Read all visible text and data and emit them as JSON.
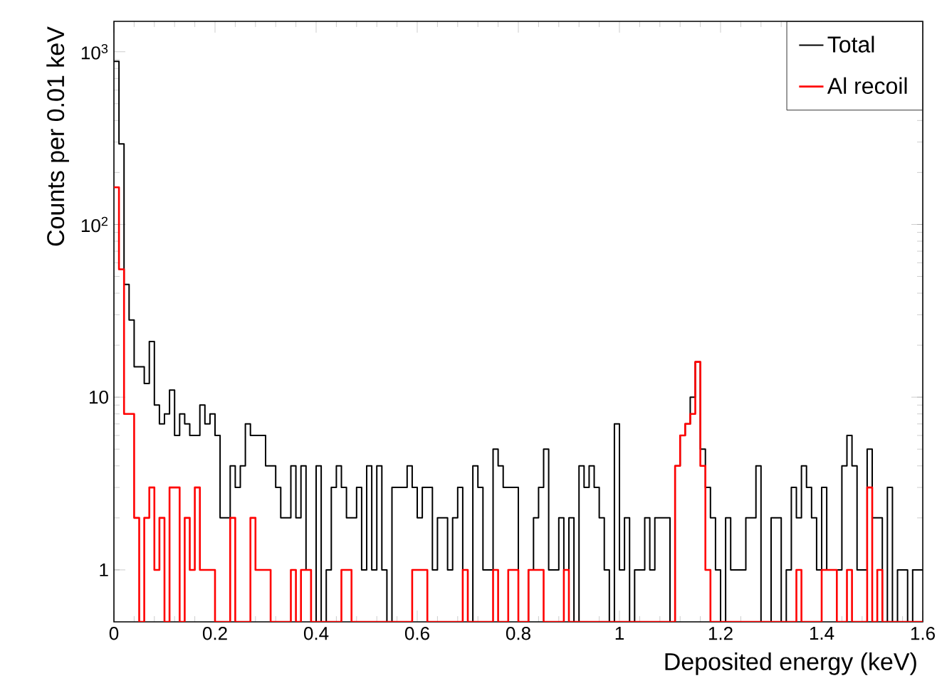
{
  "chart_data": {
    "type": "histogram",
    "xlabel": "Deposited energy (keV)",
    "ylabel": "Counts per 0.01 keV",
    "log": "y",
    "legend": "top right",
    "xlim": [
      0,
      1.6
    ],
    "ylim": [
      0.5,
      1500
    ],
    "xticks": [
      0,
      0.2,
      0.4,
      0.6,
      0.8,
      1,
      1.2,
      1.4,
      1.6
    ],
    "yticks": [
      1,
      10,
      {
        "value": 100,
        "label": "10$^{2}$"
      },
      {
        "value": 1000,
        "label": "10$^{3}$"
      }
    ],
    "bins": [
      0,
      0.01,
      0.02,
      0.03,
      0.04,
      0.05,
      0.06,
      0.07,
      0.08,
      0.09,
      0.1,
      0.11,
      0.12,
      0.13,
      0.14,
      0.15,
      0.16,
      0.17,
      0.18,
      0.19,
      0.2,
      0.21,
      0.22,
      0.23,
      0.24,
      0.25,
      0.26,
      0.27,
      0.28,
      0.29,
      0.3,
      0.31,
      0.32,
      0.33,
      0.34,
      0.35,
      0.36,
      0.37,
      0.38,
      0.39,
      0.4,
      0.41,
      0.42,
      0.43,
      0.44,
      0.45,
      0.46,
      0.47,
      0.48,
      0.49,
      0.5,
      0.51,
      0.52,
      0.53,
      0.54,
      0.55,
      0.56,
      0.57,
      0.58,
      0.59,
      0.6,
      0.61,
      0.62,
      0.63,
      0.64,
      0.65,
      0.66,
      0.67,
      0.68,
      0.69,
      0.7,
      0.71,
      0.72,
      0.73,
      0.74,
      0.75,
      0.76,
      0.77,
      0.78,
      0.79,
      0.8,
      0.81,
      0.82,
      0.83,
      0.84,
      0.85,
      0.86,
      0.87,
      0.88,
      0.89,
      0.9,
      0.91,
      0.92,
      0.93,
      0.94,
      0.95,
      0.96,
      0.97,
      0.98,
      0.99,
      1,
      1.01,
      1.02,
      1.03,
      1.04,
      1.05,
      1.06,
      1.07,
      1.08,
      1.09,
      1.1,
      1.11,
      1.12,
      1.13,
      1.14,
      1.15,
      1.16,
      1.17,
      1.18,
      1.19,
      1.2,
      1.21,
      1.22,
      1.23,
      1.24,
      1.25,
      1.26,
      1.27,
      1.28,
      1.29,
      1.3,
      1.31,
      1.32,
      1.33,
      1.34,
      1.35,
      1.36,
      1.37,
      1.38,
      1.39,
      1.4,
      1.41,
      1.42,
      1.43,
      1.44,
      1.45,
      1.46,
      1.47,
      1.48,
      1.49,
      1.5,
      1.51,
      1.52,
      1.53,
      1.54,
      1.55,
      1.56,
      1.57,
      1.58,
      1.59,
      1.6
    ],
    "series": [
      {
        "name": "Total",
        "color": "#000000",
        "values": [
          880,
          293,
          45,
          28,
          15,
          15,
          12,
          21,
          9,
          7,
          8,
          11,
          6,
          8,
          7,
          6,
          6,
          9,
          7,
          8,
          6,
          2,
          2,
          4,
          3,
          4,
          7,
          6,
          6,
          6,
          4,
          4,
          3,
          2,
          2,
          4,
          2,
          4,
          1,
          null,
          4,
          null,
          1,
          3,
          4,
          3,
          2,
          2,
          3,
          1,
          4,
          1,
          4,
          1,
          null,
          3,
          3,
          3,
          4,
          3,
          2,
          3,
          3,
          1,
          2,
          2,
          1,
          2,
          3,
          1,
          null,
          4,
          3,
          1,
          1,
          5,
          4,
          3,
          3,
          3,
          null,
          null,
          1,
          2,
          3,
          5,
          1,
          1,
          2,
          1,
          2,
          null,
          4,
          3,
          4,
          3,
          2,
          1,
          null,
          7,
          1,
          2,
          null,
          1,
          1,
          2,
          1,
          2,
          2,
          2,
          null,
          4,
          6,
          7,
          10,
          16,
          5,
          3,
          2,
          1,
          null,
          2,
          1,
          1,
          1,
          2,
          2,
          4,
          null,
          null,
          2,
          2,
          null,
          1,
          3,
          2,
          4,
          3,
          2,
          1,
          3,
          1,
          1,
          1,
          4,
          6,
          4,
          1,
          1,
          5,
          2,
          2,
          null,
          3,
          null,
          1,
          1,
          null,
          1,
          1
        ]
      },
      {
        "name": "Al recoil",
        "color": "#ff0000",
        "values": [
          164,
          55,
          8,
          8,
          2,
          null,
          2,
          3,
          1,
          2,
          null,
          3,
          3,
          null,
          2,
          1,
          3,
          1,
          1,
          1,
          null,
          null,
          null,
          2,
          null,
          null,
          null,
          2,
          1,
          1,
          1,
          null,
          null,
          null,
          null,
          1,
          null,
          1,
          1,
          null,
          null,
          null,
          null,
          null,
          null,
          1,
          1,
          null,
          null,
          null,
          null,
          null,
          null,
          null,
          null,
          null,
          null,
          null,
          null,
          1,
          1,
          1,
          null,
          null,
          null,
          null,
          null,
          null,
          null,
          1,
          null,
          null,
          null,
          null,
          null,
          1,
          null,
          null,
          1,
          1,
          null,
          null,
          1,
          1,
          1,
          null,
          null,
          null,
          null,
          1,
          null,
          null,
          null,
          null,
          null,
          null,
          null,
          null,
          null,
          null,
          null,
          null,
          null,
          null,
          null,
          null,
          null,
          null,
          null,
          null,
          null,
          4,
          6,
          7,
          8,
          16,
          4,
          1,
          null,
          null,
          null,
          null,
          null,
          null,
          null,
          null,
          null,
          null,
          null,
          null,
          null,
          null,
          null,
          null,
          null,
          1,
          null,
          null,
          null,
          null,
          1,
          1,
          1,
          null,
          null,
          1,
          null,
          null,
          null,
          3,
          null,
          1,
          null,
          null,
          null,
          null,
          null,
          null,
          null,
          null
        ]
      }
    ]
  }
}
